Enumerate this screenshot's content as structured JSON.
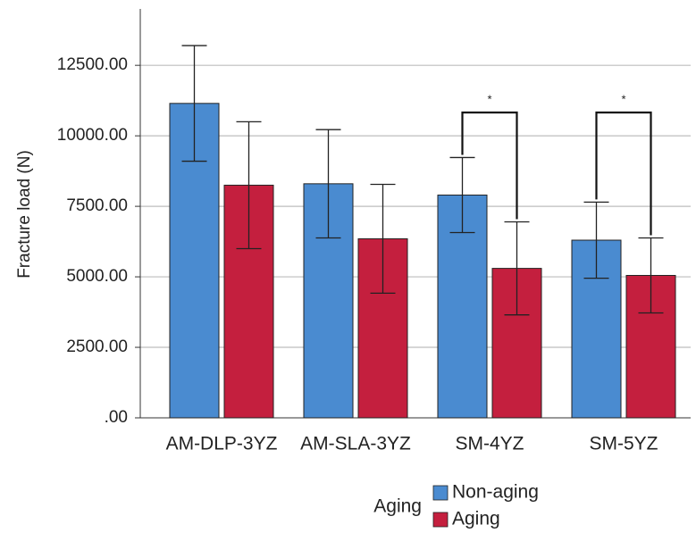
{
  "chart_data": {
    "type": "bar",
    "ylabel": "Fracture load (N)",
    "categories": [
      "AM-DLP-3YZ",
      "AM-SLA-3YZ",
      "SM-4YZ",
      "SM-5YZ"
    ],
    "series": [
      {
        "name": "Non-aging",
        "color": "#4a8bd0",
        "values": [
          11150,
          8300,
          7900,
          6300
        ],
        "errors": [
          2050,
          1920,
          1330,
          1350
        ]
      },
      {
        "name": "Aging",
        "color": "#c41f3e",
        "values": [
          8250,
          6350,
          5300,
          5050
        ],
        "errors": [
          2250,
          1930,
          1650,
          1330
        ]
      }
    ],
    "ylim": [
      0,
      14500
    ],
    "yticks": [
      {
        "value": 0,
        "label": ".00"
      },
      {
        "value": 2500,
        "label": "2500.00"
      },
      {
        "value": 5000,
        "label": "5000.00"
      },
      {
        "value": 7500,
        "label": "7500.00"
      },
      {
        "value": 10000,
        "label": "10000.00"
      },
      {
        "value": 12500,
        "label": "12500.00"
      }
    ],
    "grid": true,
    "legend_title": "Aging",
    "annotations": [
      "*",
      "*"
    ]
  }
}
